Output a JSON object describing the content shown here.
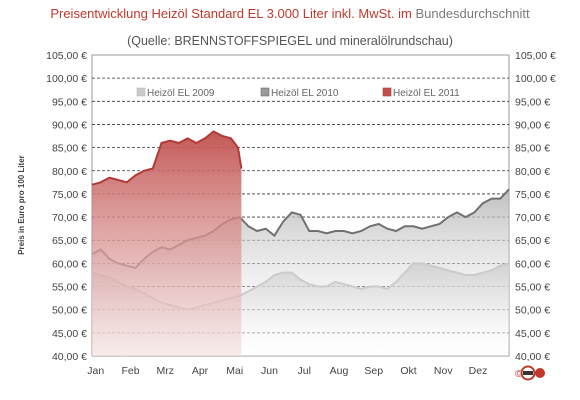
{
  "title": {
    "part1": "Preisentwicklung Heizöl Standard EL 3.000 Liter inkl. MwSt. im",
    "part2": "Bundesdurchschnitt"
  },
  "subtitle": "(Quelle: BRENNSTOFFSPIEGEL  und mineralölrundschau)",
  "logo_text": "©",
  "chart_data": {
    "type": "area",
    "ylabel": "Preis in Euro pro 100 Liter",
    "ylim": [
      40,
      105
    ],
    "yticks": [
      40,
      45,
      50,
      55,
      60,
      65,
      70,
      75,
      80,
      85,
      90,
      95,
      100,
      105
    ],
    "ytick_labels": [
      "40,00 €",
      "45,00 €",
      "50,00 €",
      "55,00 €",
      "60,00 €",
      "65,00 €",
      "70,00 €",
      "75,00 €",
      "80,00 €",
      "85,00 €",
      "90,00 €",
      "95,00 €",
      "100,00 €",
      "105,00 €"
    ],
    "categories": [
      "Jan",
      "Feb",
      "Mrz",
      "Apr",
      "Mai",
      "Jun",
      "Jul",
      "Aug",
      "Sep",
      "Okt",
      "Nov",
      "Dez"
    ],
    "grid": "horizontal dashed",
    "legend_position": "top",
    "x_domain": [
      0,
      12
    ],
    "series": [
      {
        "name": "Heizöl EL 2009",
        "color": "#c9c9c9",
        "line": "#bdbdbd",
        "x": [
          0,
          0.25,
          0.5,
          0.75,
          1,
          1.25,
          1.5,
          1.75,
          2,
          2.25,
          2.5,
          2.75,
          3,
          3.25,
          3.5,
          3.75,
          4,
          4.25,
          4.5,
          4.75,
          5,
          5.25,
          5.5,
          5.75,
          6,
          6.25,
          6.5,
          6.75,
          7,
          7.25,
          7.5,
          7.75,
          8,
          8.25,
          8.5,
          8.75,
          9,
          9.25,
          9.5,
          9.75,
          10,
          10.25,
          10.5,
          10.75,
          11,
          11.25,
          11.5,
          11.75,
          12
        ],
        "values": [
          58,
          57.5,
          57,
          56,
          55,
          54.5,
          53.5,
          52.5,
          51.5,
          51,
          50.5,
          50,
          50.5,
          51,
          51.5,
          52,
          52.5,
          53,
          54,
          55,
          56,
          57.5,
          58,
          58,
          56.5,
          55.5,
          55,
          55,
          56,
          55.5,
          55,
          54.5,
          55,
          55,
          54.5,
          56,
          58,
          60,
          60,
          59.5,
          59,
          58.5,
          58,
          57.5,
          57.5,
          58,
          58.5,
          59.5,
          60
        ]
      },
      {
        "name": "Heizöl EL 2010",
        "color": "#9a9a9a",
        "line": "#707070",
        "x": [
          0,
          0.25,
          0.5,
          0.75,
          1,
          1.25,
          1.5,
          1.75,
          2,
          2.25,
          2.5,
          2.75,
          3,
          3.25,
          3.5,
          3.75,
          4,
          4.25,
          4.5,
          4.75,
          5,
          5.25,
          5.5,
          5.75,
          6,
          6.25,
          6.5,
          6.75,
          7,
          7.25,
          7.5,
          7.75,
          8,
          8.25,
          8.5,
          8.75,
          9,
          9.25,
          9.5,
          9.75,
          10,
          10.25,
          10.5,
          10.75,
          11,
          11.25,
          11.5,
          11.75,
          12
        ],
        "values": [
          62,
          63,
          61,
          60,
          59.5,
          59,
          61,
          62.5,
          63.5,
          63,
          64,
          65,
          65.5,
          66,
          67,
          68.5,
          69.5,
          70,
          68,
          67,
          67.5,
          66,
          69,
          71,
          70.5,
          67,
          67,
          66.5,
          67,
          67,
          66.5,
          67,
          68,
          68.5,
          67.5,
          67,
          68,
          68,
          67.5,
          68,
          68.5,
          70,
          71,
          70,
          71,
          73,
          74,
          74,
          76
        ]
      },
      {
        "name": "Heizöl EL 2011",
        "color": "#c0504d",
        "line": "#b03a36",
        "x": [
          0,
          0.25,
          0.5,
          0.75,
          1,
          1.25,
          1.5,
          1.75,
          2,
          2.25,
          2.5,
          2.75,
          3,
          3.25,
          3.5,
          3.75,
          4,
          4.1,
          4.2,
          4.3
        ],
        "values": [
          77,
          77.5,
          78.5,
          78,
          77.5,
          79,
          80,
          80.5,
          86,
          86.5,
          86,
          87,
          86,
          87,
          88.5,
          87.5,
          87,
          86,
          85,
          80.5
        ]
      }
    ]
  }
}
